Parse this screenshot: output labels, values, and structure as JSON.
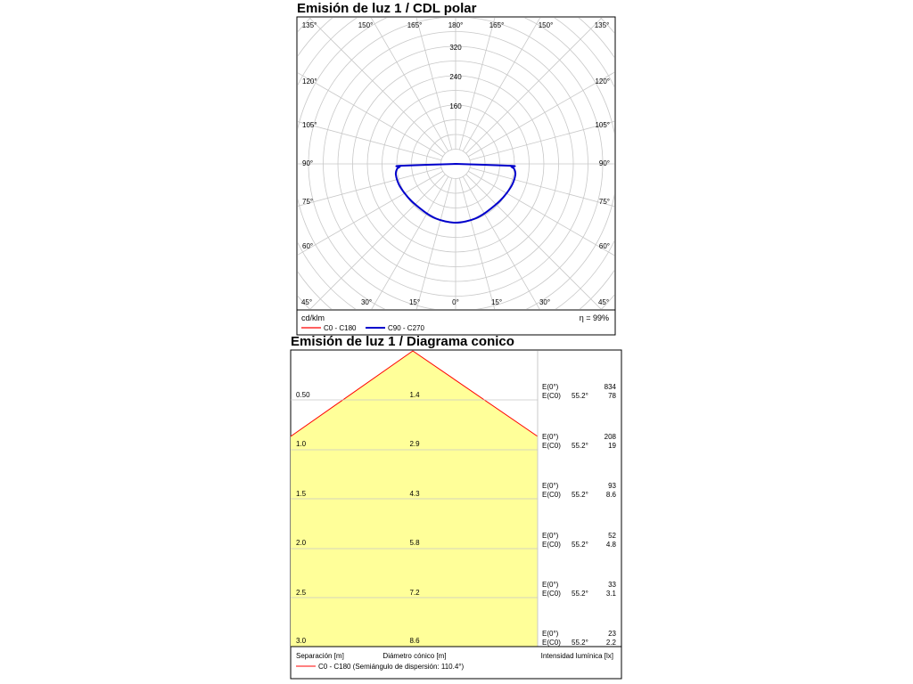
{
  "polar": {
    "title": "Emisión de luz 1 / CDL polar",
    "top_angle_labels": [
      "135°",
      "150°",
      "165°",
      "180°",
      "165°",
      "150°",
      "135°"
    ],
    "bottom_angle_labels": [
      "45°",
      "30°",
      "15°",
      "0°",
      "15°",
      "30°",
      "45°"
    ],
    "side_angle_labels": [
      "120°",
      "105°",
      "90°",
      "75°",
      "60°"
    ],
    "radial_labels": [
      "320",
      "240",
      "160"
    ],
    "unit": "cd/klm",
    "efficiency": "η = 99%",
    "legend": [
      "C0 - C180",
      "C90 - C270"
    ],
    "colors": {
      "c0_c180": "#ff0000",
      "c90_c270": "#0000cc"
    }
  },
  "chart_data": {
    "type": "polar",
    "title": "Emisión de luz 1 / CDL polar",
    "unit": "cd/klm",
    "radial_ticks": [
      160,
      240,
      320
    ],
    "series": [
      {
        "name": "C90 - C270",
        "angles_deg": [
          0,
          10,
          20,
          30,
          40,
          50,
          60,
          70,
          80,
          85,
          87,
          88,
          90
        ],
        "values": [
          160,
          159,
          158,
          156,
          155,
          157,
          160,
          164,
          165,
          160,
          152,
          150,
          0
        ]
      },
      {
        "name": "C0 - C180",
        "angles_deg": [
          0,
          10,
          20,
          30,
          40,
          50,
          60,
          70,
          80,
          85,
          87,
          88,
          90
        ],
        "values": [
          160,
          159,
          158,
          156,
          155,
          157,
          160,
          164,
          165,
          160,
          152,
          150,
          0
        ]
      }
    ]
  },
  "cone": {
    "title": "Emisión de luz 1 / Diagrama conico",
    "rows": [
      {
        "sep": "0.50",
        "diam": "1.4",
        "e0_label": "E(0°)",
        "ec0_label": "E(C0)",
        "angle": "55.2°",
        "e0": "834",
        "ec0": "78"
      },
      {
        "sep": "1.0",
        "diam": "2.9",
        "e0_label": "E(0°)",
        "ec0_label": "E(C0)",
        "angle": "55.2°",
        "e0": "208",
        "ec0": "19"
      },
      {
        "sep": "1.5",
        "diam": "4.3",
        "e0_label": "E(0°)",
        "ec0_label": "E(C0)",
        "angle": "55.2°",
        "e0": "93",
        "ec0": "8.6"
      },
      {
        "sep": "2.0",
        "diam": "5.8",
        "e0_label": "E(0°)",
        "ec0_label": "E(C0)",
        "angle": "55.2°",
        "e0": "52",
        "ec0": "4.8"
      },
      {
        "sep": "2.5",
        "diam": "7.2",
        "e0_label": "E(0°)",
        "ec0_label": "E(C0)",
        "angle": "55.2°",
        "e0": "33",
        "ec0": "3.1"
      },
      {
        "sep": "3.0",
        "diam": "8.6",
        "e0_label": "E(0°)",
        "ec0_label": "E(C0)",
        "angle": "55.2°",
        "e0": "23",
        "ec0": "2.2"
      }
    ],
    "footer": {
      "sep_label": "Separación [m]",
      "diam_label": "Diámetro cónico [m]",
      "lux_label": "Intensidad lumínica [lx]",
      "legend": "C0 - C180 (Semiángulo de dispersión: 110.4°)"
    },
    "colors": {
      "fill": "#ffff99",
      "edge": "#ff0000"
    }
  }
}
